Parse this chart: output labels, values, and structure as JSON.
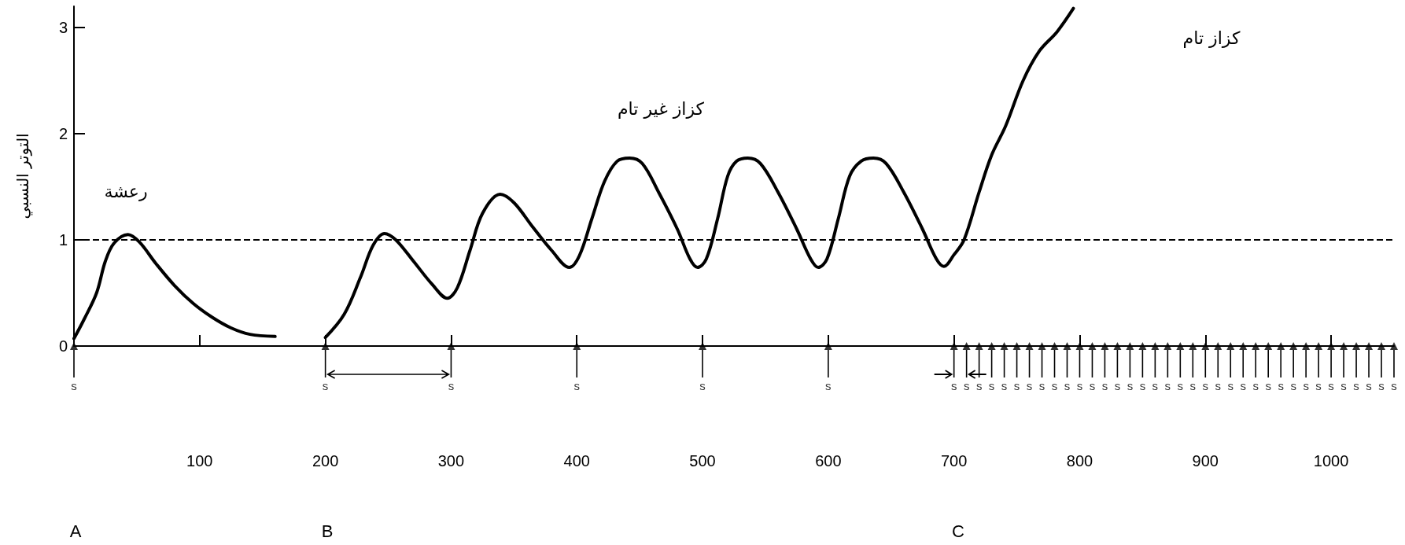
{
  "chart_data": {
    "type": "line",
    "ylabel": "التوتر النسبي",
    "xlim": [
      0,
      1050
    ],
    "ylim": [
      0,
      3.2
    ],
    "xticks": [
      100,
      200,
      300,
      400,
      500,
      600,
      700,
      800,
      900,
      1000
    ],
    "yticks": [
      0,
      1,
      2,
      3
    ],
    "grid": false,
    "marker": "none",
    "line_style": "solid",
    "series": [
      {
        "color": "#000000",
        "x": [
          0,
          8,
          18,
          25,
          32,
          43,
          52,
          65,
          80,
          95,
          110,
          125,
          140,
          160
        ],
        "values": [
          0.07,
          0.25,
          0.5,
          0.8,
          0.97,
          1.05,
          0.98,
          0.78,
          0.57,
          0.4,
          0.27,
          0.17,
          0.11,
          0.09
        ]
      },
      {
        "type": "scatter",
        "name": "s",
        "color": "#000000",
        "marker": "triangle",
        "x": [
          0,
          200,
          300,
          400,
          500,
          600,
          700,
          710,
          720,
          730,
          740,
          750,
          760,
          770,
          780,
          790,
          800,
          810,
          820,
          830,
          840,
          850,
          860,
          870,
          880,
          890,
          900,
          910,
          920,
          930,
          940,
          950,
          960,
          970,
          980,
          990,
          1000,
          1010,
          1020,
          1030,
          1040,
          1050
        ],
        "values": [
          0,
          0,
          0,
          0,
          0,
          0,
          0,
          0,
          0,
          0,
          0,
          0,
          0,
          0,
          0,
          0,
          0,
          0,
          0,
          0,
          0,
          0,
          0,
          0,
          0,
          0,
          0,
          0,
          0,
          0,
          0,
          0,
          0,
          0,
          0,
          0,
          0,
          0,
          0,
          0,
          0,
          0
        ]
      },
      {
        "color": "#000000",
        "x": [
          200,
          215,
          228,
          238,
          247,
          256,
          270,
          285,
          297,
          305,
          315,
          325,
          339,
          350,
          365,
          380,
          394,
          402,
          412,
          422,
          432,
          442,
          452,
          465,
          480,
          490,
          496,
          503,
          512,
          520,
          527,
          536,
          546,
          560,
          575,
          586,
          592,
          599,
          608,
          617,
          626,
          636,
          646,
          660,
          675,
          686,
          692,
          700,
          708,
          720,
          730,
          741,
          755,
          768,
          782,
          795
        ],
        "values": [
          0.08,
          0.3,
          0.65,
          0.95,
          1.06,
          1.0,
          0.8,
          0.58,
          0.45,
          0.55,
          0.9,
          1.25,
          1.43,
          1.35,
          1.12,
          0.9,
          0.74,
          0.85,
          1.2,
          1.55,
          1.74,
          1.77,
          1.72,
          1.45,
          1.1,
          0.82,
          0.74,
          0.82,
          1.2,
          1.6,
          1.74,
          1.77,
          1.72,
          1.45,
          1.1,
          0.82,
          0.74,
          0.82,
          1.2,
          1.6,
          1.74,
          1.77,
          1.72,
          1.45,
          1.1,
          0.82,
          0.75,
          0.86,
          1.0,
          1.45,
          1.8,
          2.07,
          2.5,
          2.78,
          2.96,
          3.18
        ]
      }
    ],
    "ref_lines": [
      {
        "axis": "y",
        "value": 1,
        "line_style": "dashed",
        "color": "#000000"
      }
    ],
    "annotations": [
      "رعشة",
      "كزاز غير تام",
      "كزاز تام",
      "A",
      "B",
      "C"
    ]
  }
}
